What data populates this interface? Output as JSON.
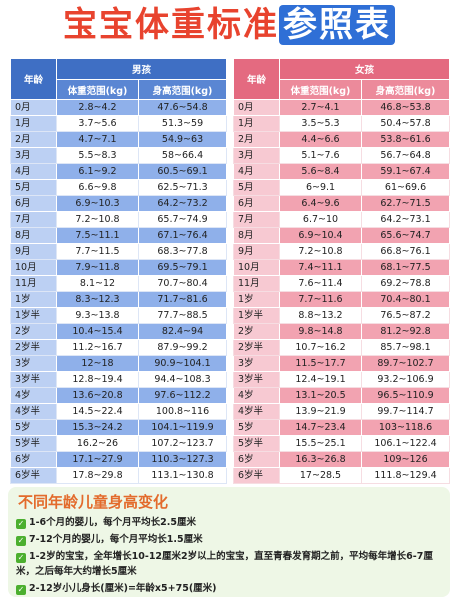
{
  "title": {
    "main": "宝宝体重标准",
    "highlight": "参照表"
  },
  "tables": [
    {
      "age_header": "年龄",
      "group": "男孩",
      "columns": [
        "体重范围(kg)",
        "身高范围(kg)"
      ],
      "rows": [
        [
          "0月",
          "2.8~4.2",
          "47.6~54.8"
        ],
        [
          "1月",
          "3.7~5.6",
          "51.3~59"
        ],
        [
          "2月",
          "4.7~7.1",
          "54.9~63"
        ],
        [
          "3月",
          "5.5~8.3",
          "58~66.4"
        ],
        [
          "4月",
          "6.1~9.2",
          "60.5~69.1"
        ],
        [
          "5月",
          "6.6~9.8",
          "62.5~71.3"
        ],
        [
          "6月",
          "6.9~10.3",
          "64.2~73.2"
        ],
        [
          "7月",
          "7.2~10.8",
          "65.7~74.9"
        ],
        [
          "8月",
          "7.5~11.1",
          "67.1~76.4"
        ],
        [
          "9月",
          "7.7~11.5",
          "68.3~77.8"
        ],
        [
          "10月",
          "7.9~11.8",
          "69.5~79.1"
        ],
        [
          "11月",
          "8.1~12",
          "70.7~80.4"
        ],
        [
          "1岁",
          "8.3~12.3",
          "71.7~81.6"
        ],
        [
          "1岁半",
          "9.3~13.8",
          "77.7~88.5"
        ],
        [
          "2岁",
          "10.4~15.4",
          "82.4~94"
        ],
        [
          "2岁半",
          "11.2~16.7",
          "87.9~99.2"
        ],
        [
          "3岁",
          "12~18",
          "90.9~104.1"
        ],
        [
          "3岁半",
          "12.8~19.4",
          "94.4~108.3"
        ],
        [
          "4岁",
          "13.6~20.8",
          "97.6~112.2"
        ],
        [
          "4岁半",
          "14.5~22.4",
          "100.8~116"
        ],
        [
          "5岁",
          "15.3~24.2",
          "104.1~119.9"
        ],
        [
          "5岁半",
          "16.2~26",
          "107.2~123.7"
        ],
        [
          "6岁",
          "17.1~27.9",
          "110.3~127.3"
        ],
        [
          "6岁半",
          "17.8~29.8",
          "113.1~130.8"
        ]
      ]
    },
    {
      "age_header": "年龄",
      "group": "女孩",
      "columns": [
        "体重范围(kg)",
        "身高范围(kg)"
      ],
      "rows": [
        [
          "0月",
          "2.7~4.1",
          "46.8~53.8"
        ],
        [
          "1月",
          "3.5~5.3",
          "50.4~57.8"
        ],
        [
          "2月",
          "4.4~6.6",
          "53.8~61.6"
        ],
        [
          "3月",
          "5.1~7.6",
          "56.7~64.8"
        ],
        [
          "4月",
          "5.6~8.4",
          "59.1~67.4"
        ],
        [
          "5月",
          "6~9.1",
          "61~69.6"
        ],
        [
          "6月",
          "6.4~9.6",
          "62.7~71.5"
        ],
        [
          "7月",
          "6.7~10",
          "64.2~73.1"
        ],
        [
          "8月",
          "6.9~10.4",
          "65.6~74.7"
        ],
        [
          "9月",
          "7.2~10.8",
          "66.8~76.1"
        ],
        [
          "10月",
          "7.4~11.1",
          "68.1~77.5"
        ],
        [
          "11月",
          "7.6~11.4",
          "69.2~78.8"
        ],
        [
          "1岁",
          "7.7~11.6",
          "70.4~80.1"
        ],
        [
          "1岁半",
          "8.8~13.2",
          "76.5~87.2"
        ],
        [
          "2岁",
          "9.8~14.8",
          "81.2~92.8"
        ],
        [
          "2岁半",
          "10.7~16.2",
          "85.7~98.1"
        ],
        [
          "3岁",
          "11.5~17.7",
          "89.7~102.7"
        ],
        [
          "3岁半",
          "12.4~19.1",
          "93.2~106.9"
        ],
        [
          "4岁",
          "13.1~20.5",
          "96.5~110.9"
        ],
        [
          "4岁半",
          "13.9~21.9",
          "99.7~114.7"
        ],
        [
          "5岁",
          "14.7~23.4",
          "103~118.6"
        ],
        [
          "5岁半",
          "15.5~25.1",
          "106.1~122.4"
        ],
        [
          "6岁",
          "16.3~26.8",
          "109~126"
        ],
        [
          "6岁半",
          "17~28.5",
          "111.8~129.4"
        ]
      ]
    }
  ],
  "notes": {
    "title": "不同年龄儿童身高变化",
    "items": [
      "1-6个月的婴儿，每个月平均长2.5厘米",
      "7-12个月的婴儿，每个月平均长1.5厘米",
      "1-2岁的宝宝，全年增长10-12厘米2岁以上的宝宝，直至青春发育期之前，平均每年增长6-7厘米，之后每年大约增长5厘米",
      "2-12岁小儿身长(厘米)=年龄x5+75(厘米)"
    ]
  }
}
